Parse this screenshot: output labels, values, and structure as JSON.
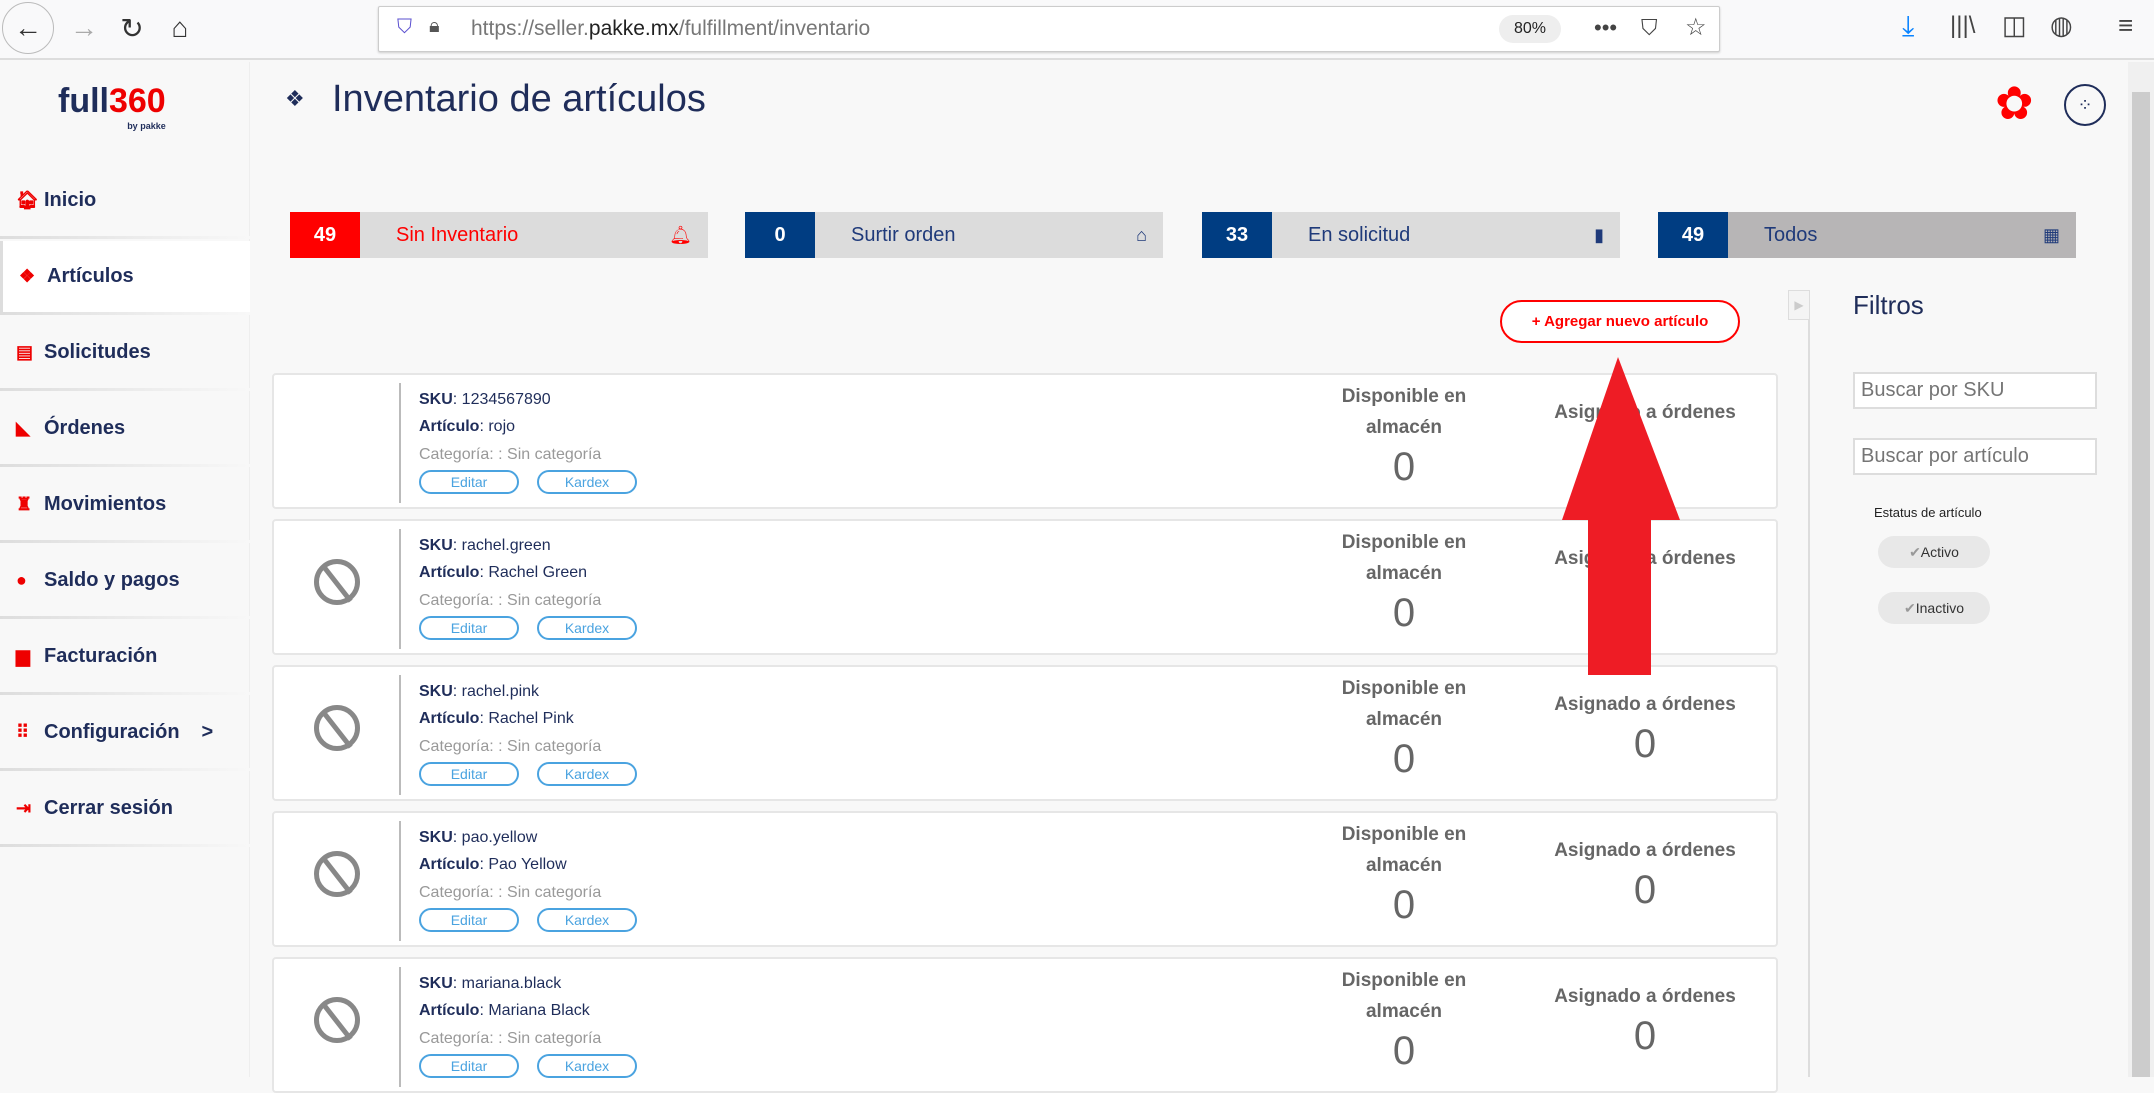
{
  "browser": {
    "url_prefix": "https://seller.",
    "url_domain": "pakke.mx",
    "url_path": "/fulfillment/inventario",
    "zoom": "80%"
  },
  "logo": {
    "text": "full",
    "num": "360",
    "sub": "by pakke"
  },
  "sidebar": {
    "items": [
      {
        "label": "Inicio",
        "icon": "home-icon"
      },
      {
        "label": "Artículos",
        "icon": "boxes-icon",
        "active": true
      },
      {
        "label": "Solicitudes",
        "icon": "document-icon"
      },
      {
        "label": "Órdenes",
        "icon": "cart-icon"
      },
      {
        "label": "Movimientos",
        "icon": "money-bag-icon"
      },
      {
        "label": "Saldo y pagos",
        "icon": "dollar-circle-icon"
      },
      {
        "label": "Facturación",
        "icon": "invoice-icon"
      },
      {
        "label": "Configuración",
        "icon": "grid-icon",
        "chevron": ">"
      },
      {
        "label": "Cerrar sesión",
        "icon": "logout-icon"
      }
    ]
  },
  "header": {
    "title": "Inventario de artículos"
  },
  "stats": [
    {
      "count": "49",
      "label": "Sin Inventario",
      "icon": "bell-icon",
      "numColor": "#ff0000",
      "labelColor": "#ff0000",
      "bg": "#dcdcdc"
    },
    {
      "count": "0",
      "label": "Surtir orden",
      "icon": "home-icon",
      "numColor": "#003d82",
      "labelColor": "#1f3a7a",
      "bg": "#dcdcdc"
    },
    {
      "count": "33",
      "label": "En solicitud",
      "icon": "file-icon",
      "numColor": "#003d82",
      "labelColor": "#1f3a7a",
      "bg": "#dcdcdc"
    },
    {
      "count": "49",
      "label": "Todos",
      "icon": "grid-icon",
      "numColor": "#003d82",
      "labelColor": "#1f3a7a",
      "bg": "#b7b5b6"
    }
  ],
  "add_button": "Agregar nuevo artículo",
  "labels": {
    "sku": "SKU",
    "articulo": "Artículo",
    "categoria": "Categoría: : Sin categoría",
    "editar": "Editar",
    "kardex": "Kardex",
    "disponible": "Disponible en almacén",
    "asignado": "Asignado a órdenes"
  },
  "items": [
    {
      "sku": "1234567890",
      "articulo": "rojo",
      "disponible": "0",
      "asignado": "",
      "has_image": true
    },
    {
      "sku": "rachel.green",
      "articulo": "Rachel Green",
      "disponible": "0",
      "asignado": ""
    },
    {
      "sku": "rachel.pink",
      "articulo": "Rachel Pink",
      "disponible": "0",
      "asignado": "0"
    },
    {
      "sku": "pao.yellow",
      "articulo": "Pao Yellow",
      "disponible": "0",
      "asignado": "0"
    },
    {
      "sku": "mariana.black",
      "articulo": "Mariana Black",
      "disponible": "0",
      "asignado": "0"
    }
  ],
  "filters": {
    "title": "Filtros",
    "sku_placeholder": "Buscar por SKU",
    "articulo_placeholder": "Buscar por artículo",
    "status_label": "Estatus de artículo",
    "chips": [
      "Activo",
      "Inactivo"
    ]
  }
}
